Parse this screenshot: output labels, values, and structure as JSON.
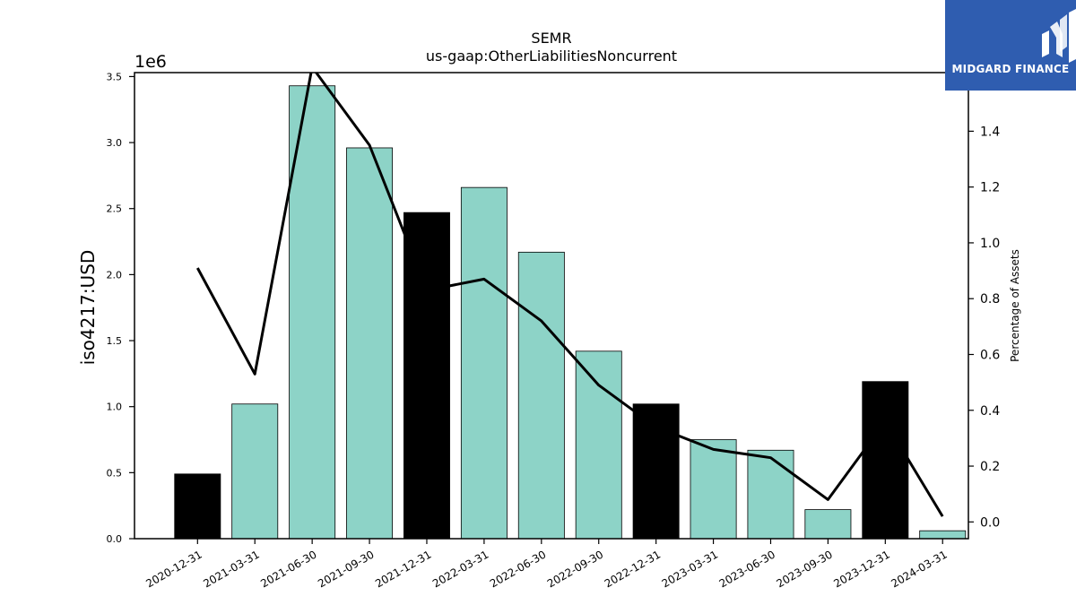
{
  "chart_data": {
    "type": "bar",
    "title": "SEMR",
    "subtitle": "us-gaap:OtherLiabilitiesNoncurrent",
    "ylabel": "iso4217:USD",
    "y_multiplier_label": "1e6",
    "y2label": "Percentage of Assets",
    "categories": [
      "2020-12-31",
      "2021-03-31",
      "2021-06-30",
      "2021-09-30",
      "2021-12-31",
      "2022-03-31",
      "2022-06-30",
      "2022-09-30",
      "2022-12-31",
      "2023-03-31",
      "2023-06-30",
      "2023-09-30",
      "2023-12-31",
      "2024-03-31"
    ],
    "series": [
      {
        "type": "bar",
        "values": [
          0.49,
          1.02,
          3.43,
          2.96,
          2.47,
          2.66,
          2.17,
          1.42,
          1.02,
          0.75,
          0.67,
          0.22,
          1.19,
          0.06
        ],
        "highlight": [
          true,
          false,
          false,
          false,
          true,
          false,
          false,
          false,
          true,
          false,
          false,
          false,
          true,
          false
        ],
        "color": "#8dd3c7",
        "highlight_color": "#000000"
      },
      {
        "type": "line",
        "axis": "right",
        "values": [
          0.91,
          0.53,
          1.63,
          1.35,
          0.83,
          0.87,
          0.72,
          0.49,
          0.34,
          0.26,
          0.23,
          0.08,
          0.36,
          0.02
        ],
        "color": "#000000"
      }
    ],
    "ylim": [
      0,
      3.53
    ],
    "y_ticks": [
      "0.0",
      "0.5",
      "1.0",
      "1.5",
      "2.0",
      "2.5",
      "3.0",
      "3.5"
    ],
    "y2lim": [
      -0.06,
      1.61
    ],
    "y2_ticks": [
      "0.0",
      "0.2",
      "0.4",
      "0.6",
      "0.8",
      "1.0",
      "1.2",
      "1.4"
    ],
    "grid": false,
    "legend": "none"
  },
  "logo": {
    "text": "MIDGARD FINANCE",
    "color": "#2f5db0"
  }
}
